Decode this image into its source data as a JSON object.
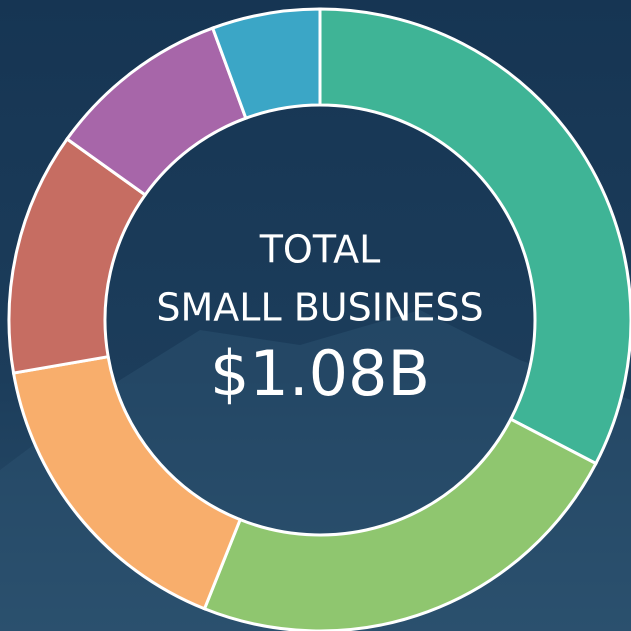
{
  "chart_data": {
    "type": "donut",
    "center_lines": [
      "TOTAL",
      "SMALL BUSINESS"
    ],
    "center_value": "$1.08B",
    "values": [
      32.6,
      23.4,
      16.2,
      12.6,
      9.5,
      5.6
    ],
    "colors": [
      "#3fb496",
      "#8fc66f",
      "#f8ae6c",
      "#c66d62",
      "#a766a9",
      "#3ba6c6"
    ]
  }
}
